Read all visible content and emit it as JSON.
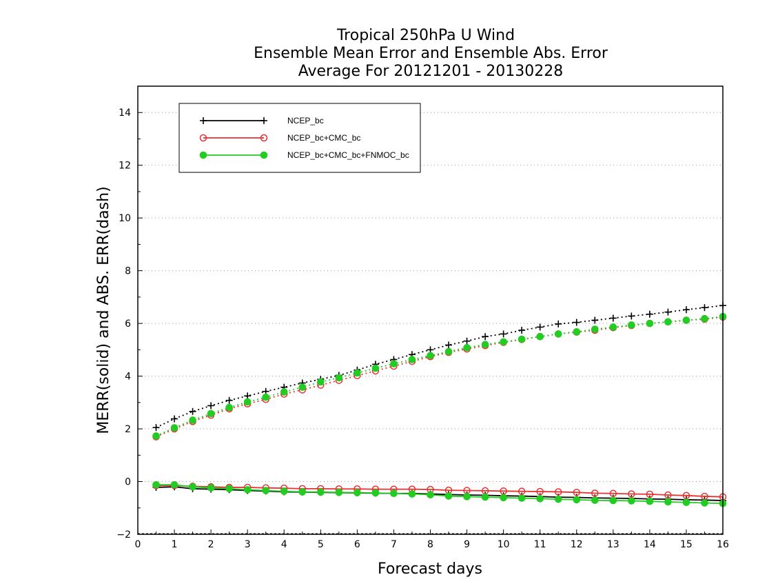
{
  "chart_data": {
    "type": "line",
    "title": [
      "Tropical 250hPa U Wind",
      "Ensemble Mean Error and Ensemble Abs. Error",
      "Average For 20121201 - 20130228"
    ],
    "xlabel": "Forecast days",
    "ylabel": "MERR(solid) and ABS. ERR(dash)",
    "xlim": [
      0,
      16
    ],
    "ylim": [
      -2,
      15
    ],
    "xticks": [
      0,
      1,
      2,
      3,
      4,
      5,
      6,
      7,
      8,
      9,
      10,
      11,
      12,
      13,
      14,
      15,
      16
    ],
    "yticks": [
      -2,
      0,
      2,
      4,
      6,
      8,
      10,
      12,
      14
    ],
    "grid": "horizontal dotted",
    "legend_position": "top-left",
    "x": [
      0.5,
      1,
      1.5,
      2,
      2.5,
      3,
      3.5,
      4,
      4.5,
      5,
      5.5,
      6,
      6.5,
      7,
      7.5,
      8,
      8.5,
      9,
      9.5,
      10,
      10.5,
      11,
      11.5,
      12,
      12.5,
      13,
      13.5,
      14,
      14.5,
      15,
      15.5,
      16
    ],
    "series": [
      {
        "name": "NCEP_bc",
        "color": "#000000",
        "marker": "plus",
        "merr": [
          -0.22,
          -0.2,
          -0.27,
          -0.29,
          -0.31,
          -0.34,
          -0.36,
          -0.39,
          -0.4,
          -0.41,
          -0.42,
          -0.43,
          -0.44,
          -0.45,
          -0.45,
          -0.47,
          -0.49,
          -0.51,
          -0.52,
          -0.54,
          -0.55,
          -0.57,
          -0.59,
          -0.6,
          -0.62,
          -0.63,
          -0.64,
          -0.66,
          -0.67,
          -0.69,
          -0.7,
          -0.72
        ],
        "abs_err": [
          2.05,
          2.38,
          2.66,
          2.88,
          3.08,
          3.25,
          3.42,
          3.58,
          3.74,
          3.88,
          4.03,
          4.23,
          4.45,
          4.63,
          4.82,
          5.0,
          5.18,
          5.33,
          5.5,
          5.6,
          5.74,
          5.86,
          5.98,
          6.04,
          6.12,
          6.2,
          6.28,
          6.35,
          6.43,
          6.52,
          6.6,
          6.68
        ]
      },
      {
        "name": "NCEP_bc+CMC_bc",
        "color": "#e83030",
        "marker": "open-circle",
        "merr": [
          -0.15,
          -0.15,
          -0.18,
          -0.2,
          -0.22,
          -0.22,
          -0.24,
          -0.25,
          -0.27,
          -0.27,
          -0.28,
          -0.28,
          -0.29,
          -0.29,
          -0.29,
          -0.3,
          -0.33,
          -0.34,
          -0.35,
          -0.36,
          -0.37,
          -0.38,
          -0.39,
          -0.41,
          -0.44,
          -0.45,
          -0.47,
          -0.48,
          -0.51,
          -0.53,
          -0.56,
          -0.58
        ],
        "abs_err": [
          1.7,
          2.0,
          2.28,
          2.52,
          2.76,
          2.95,
          3.12,
          3.32,
          3.48,
          3.66,
          3.84,
          4.02,
          4.2,
          4.38,
          4.56,
          4.74,
          4.9,
          5.03,
          5.16,
          5.28,
          5.39,
          5.5,
          5.6,
          5.67,
          5.74,
          5.84,
          5.92,
          6.0,
          6.06,
          6.12,
          6.16,
          6.24
        ]
      },
      {
        "name": "NCEP_bc+CMC_bc+FNMOC_bc",
        "color": "#22cc22",
        "marker": "filled-circle",
        "merr": [
          -0.12,
          -0.12,
          -0.2,
          -0.24,
          -0.27,
          -0.31,
          -0.34,
          -0.37,
          -0.39,
          -0.4,
          -0.41,
          -0.42,
          -0.43,
          -0.45,
          -0.47,
          -0.5,
          -0.55,
          -0.57,
          -0.59,
          -0.61,
          -0.63,
          -0.65,
          -0.67,
          -0.69,
          -0.71,
          -0.72,
          -0.73,
          -0.75,
          -0.77,
          -0.79,
          -0.81,
          -0.83
        ],
        "abs_err": [
          1.73,
          2.04,
          2.33,
          2.58,
          2.81,
          3.02,
          3.2,
          3.4,
          3.58,
          3.78,
          3.94,
          4.12,
          4.3,
          4.47,
          4.63,
          4.78,
          4.93,
          5.08,
          5.2,
          5.3,
          5.4,
          5.5,
          5.6,
          5.68,
          5.78,
          5.86,
          5.94,
          6.0,
          6.06,
          6.12,
          6.18,
          6.26
        ]
      }
    ]
  }
}
